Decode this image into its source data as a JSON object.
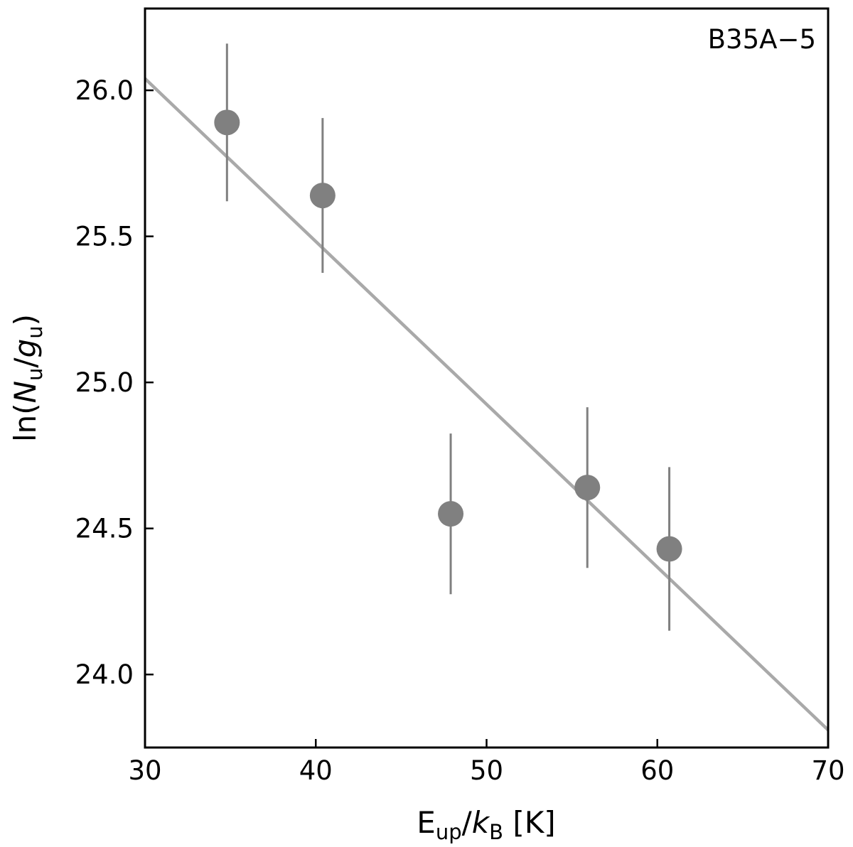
{
  "chart_data": {
    "type": "scatter",
    "title": "",
    "annotation": "B35A−5",
    "annotation_placement": "top-right",
    "xlabel": {
      "main": "E",
      "sub": "up",
      "sep": "/",
      "k": "k",
      "ksub": "B",
      "unit": " [K]"
    },
    "ylabel": {
      "pre": "ln(",
      "n": "N",
      "nsub": "u",
      "sep": "/",
      "g": "g",
      "gsub": "u",
      "post": ")"
    },
    "xlim": [
      30,
      70
    ],
    "ylim": [
      23.75,
      26.28
    ],
    "xticks": [
      30,
      40,
      50,
      60,
      70
    ],
    "xtick_labels": [
      "30",
      "40",
      "50",
      "60",
      "70"
    ],
    "yticks": [
      24.0,
      24.5,
      25.0,
      25.5,
      26.0
    ],
    "ytick_labels": [
      "24.0",
      "24.5",
      "25.0",
      "25.5",
      "26.0"
    ],
    "grid": false,
    "points": {
      "x": [
        34.8,
        40.4,
        47.9,
        55.9,
        60.7
      ],
      "y": [
        25.89,
        25.64,
        24.55,
        24.64,
        24.43
      ],
      "yerr": [
        0.27,
        0.265,
        0.275,
        0.275,
        0.28
      ],
      "color": "#808080"
    },
    "fit_line": {
      "x": [
        30,
        70
      ],
      "y": [
        26.04,
        23.81
      ],
      "color": "#a9a9a9"
    },
    "colors": {
      "axes": "#000000",
      "background": "#ffffff"
    }
  }
}
